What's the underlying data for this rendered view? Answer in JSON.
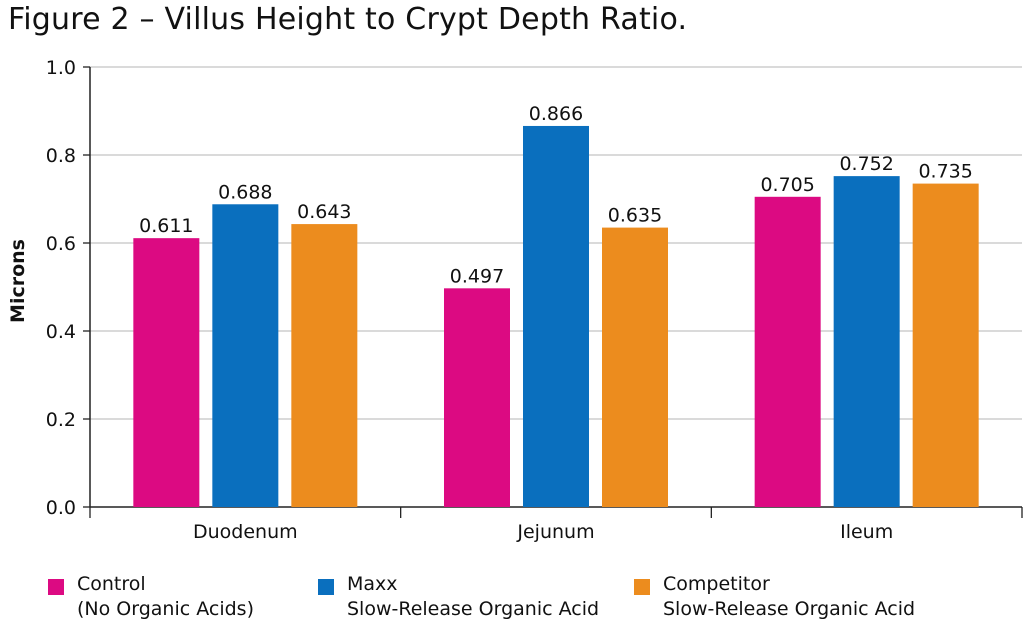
{
  "title": "Figure 2 – Villus Height to Crypt Depth Ratio.",
  "chart_data": {
    "type": "bar",
    "categories": [
      "Duodenum",
      "Jejunum",
      "Ileum"
    ],
    "ylabel": "Microns",
    "xlabel": "",
    "ylim": [
      0,
      1.0
    ],
    "yticks": [
      "0.0",
      "0.2",
      "0.4",
      "0.6",
      "0.8",
      "1.0"
    ],
    "grid": true,
    "legend_position": "bottom",
    "series": [
      {
        "name": "Control",
        "name_line2": "(No Organic Acids)",
        "color": "#dc0a82",
        "values": [
          0.611,
          0.497,
          0.705
        ],
        "labels": [
          "0.611",
          "0.497",
          "0.705"
        ]
      },
      {
        "name": "Maxx",
        "name_line2": "Slow-Release Organic Acid",
        "color": "#0a6fbe",
        "values": [
          0.688,
          0.866,
          0.752
        ],
        "labels": [
          "0.688",
          "0.866",
          "0.752"
        ]
      },
      {
        "name": "Competitor",
        "name_line2": "Slow-Release Organic Acid",
        "color": "#ec8c1e",
        "values": [
          0.643,
          0.635,
          0.735
        ],
        "labels": [
          "0.643",
          "0.635",
          "0.735"
        ]
      }
    ]
  }
}
